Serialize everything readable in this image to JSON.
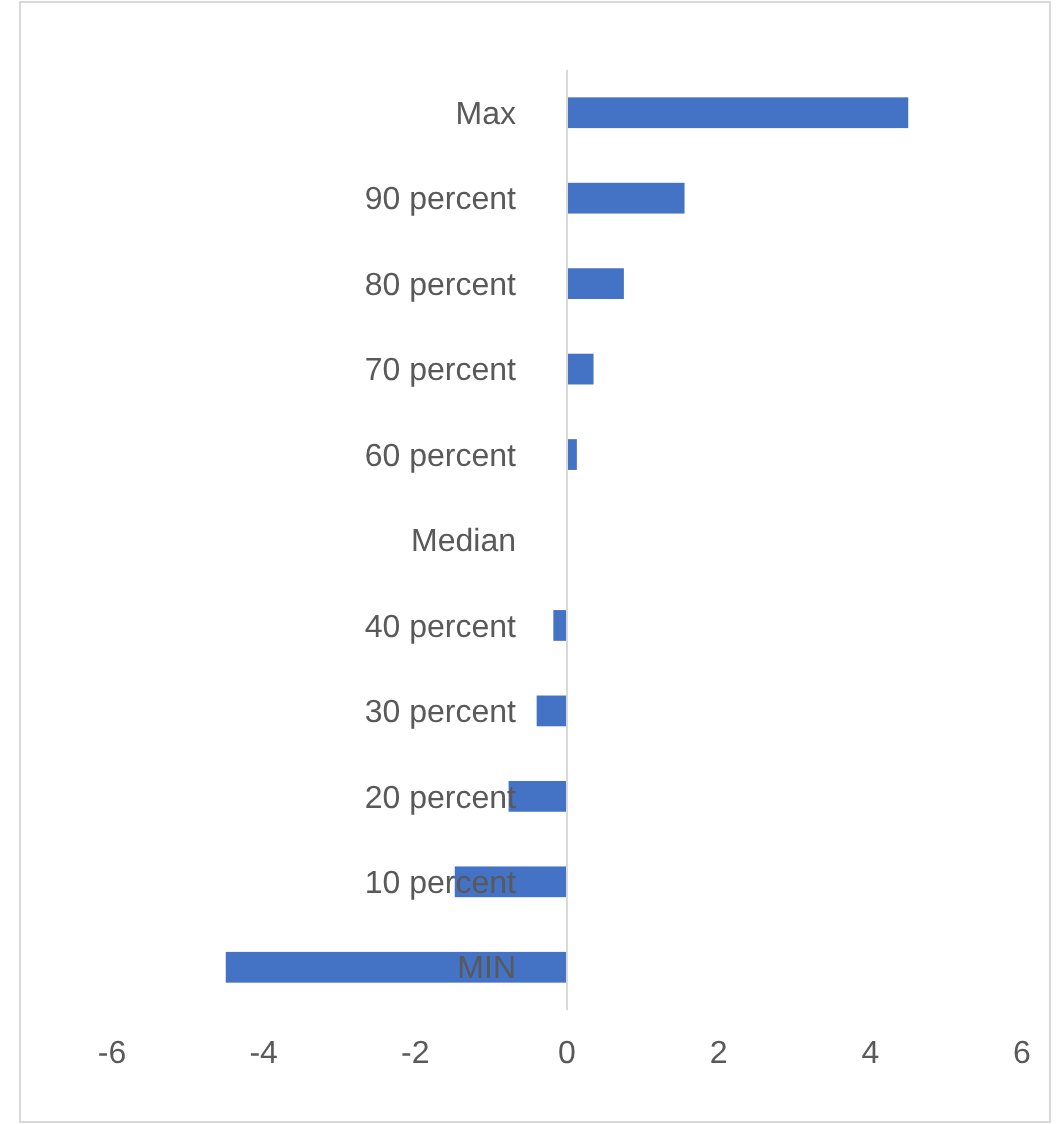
{
  "chart_data": {
    "type": "bar",
    "orientation": "horizontal",
    "categories": [
      "Max",
      "90 percent",
      "80 percent",
      "70 percent",
      "60 percent",
      "Median",
      "40 percent",
      "30 percent",
      "20 percent",
      "10 percent",
      "MIN"
    ],
    "values": [
      4.5,
      1.55,
      0.75,
      0.35,
      0.13,
      0,
      -0.18,
      -0.4,
      -0.77,
      -1.48,
      -4.5
    ],
    "color": "#4472c4",
    "xlim": [
      -6,
      6
    ],
    "xticks": [
      -6,
      -4,
      -2,
      0,
      2,
      4,
      6
    ],
    "grid": false
  }
}
